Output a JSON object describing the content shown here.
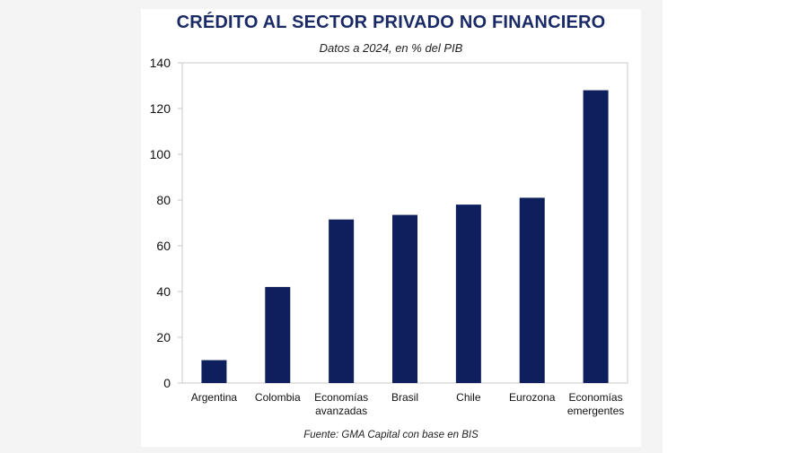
{
  "title": "CRÉDITO AL SECTOR PRIVADO NO FINANCIERO",
  "subtitle": "Datos a 2024, en % del PIB",
  "source": "Fuente: GMA Capital con base en BIS",
  "colors": {
    "bar": "#0d1f5c",
    "title": "#1a2a66"
  },
  "chart_data": {
    "type": "bar",
    "title": "CRÉDITO AL SECTOR PRIVADO NO FINANCIERO",
    "subtitle": "Datos a 2024, en % del PIB",
    "categories": [
      [
        "Argentina"
      ],
      [
        "Colombia"
      ],
      [
        "Economías",
        "avanzadas"
      ],
      [
        "Brasil"
      ],
      [
        "Chile"
      ],
      [
        "Eurozona"
      ],
      [
        "Economías",
        "emergentes"
      ]
    ],
    "values": [
      10,
      42,
      71.5,
      73.5,
      78,
      81,
      128
    ],
    "ylim": [
      0,
      140
    ],
    "yticks": [
      0,
      20,
      40,
      60,
      80,
      100,
      120,
      140
    ],
    "grid": false,
    "legend": "none"
  }
}
